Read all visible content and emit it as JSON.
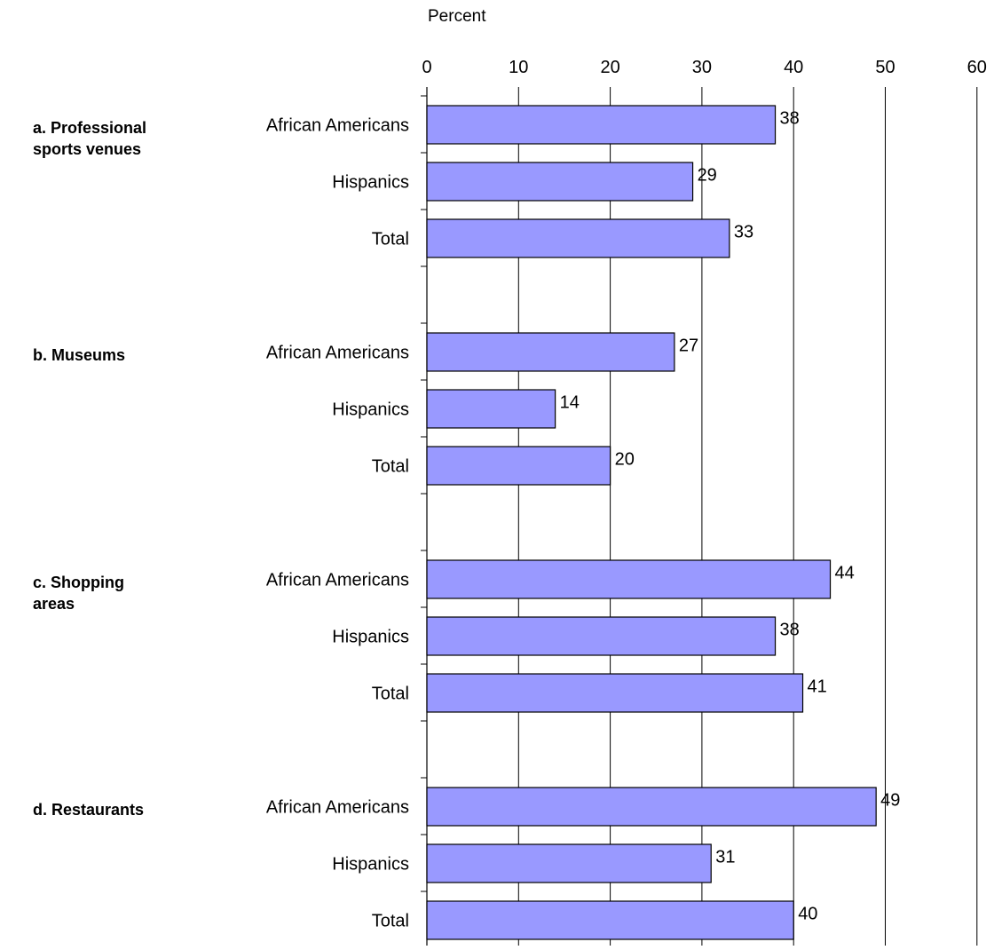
{
  "chart_data": {
    "type": "bar",
    "orientation": "horizontal",
    "xlabel": "Percent",
    "xlim": [
      0,
      60
    ],
    "xticks": [
      0,
      10,
      20,
      30,
      40,
      50,
      60
    ],
    "xaxis_position": "top",
    "grid": true,
    "bar_color": "#9999ff",
    "groups": [
      {
        "label_lines": [
          "a.  Professional",
          "sports venues"
        ],
        "bars": [
          {
            "category": "African Americans",
            "value": 38
          },
          {
            "category": "Hispanics",
            "value": 29
          },
          {
            "category": "Total",
            "value": 33
          }
        ]
      },
      {
        "label_lines": [
          "b.  Museums"
        ],
        "bars": [
          {
            "category": "African Americans",
            "value": 27
          },
          {
            "category": "Hispanics",
            "value": 14
          },
          {
            "category": "Total",
            "value": 20
          }
        ]
      },
      {
        "label_lines": [
          "c.  Shopping",
          "areas"
        ],
        "bars": [
          {
            "category": "African Americans",
            "value": 44
          },
          {
            "category": "Hispanics",
            "value": 38
          },
          {
            "category": "Total",
            "value": 41
          }
        ]
      },
      {
        "label_lines": [
          "d.  Restaurants"
        ],
        "bars": [
          {
            "category": "African Americans",
            "value": 49
          },
          {
            "category": "Hispanics",
            "value": 31
          },
          {
            "category": "Total",
            "value": 40
          }
        ]
      }
    ]
  }
}
